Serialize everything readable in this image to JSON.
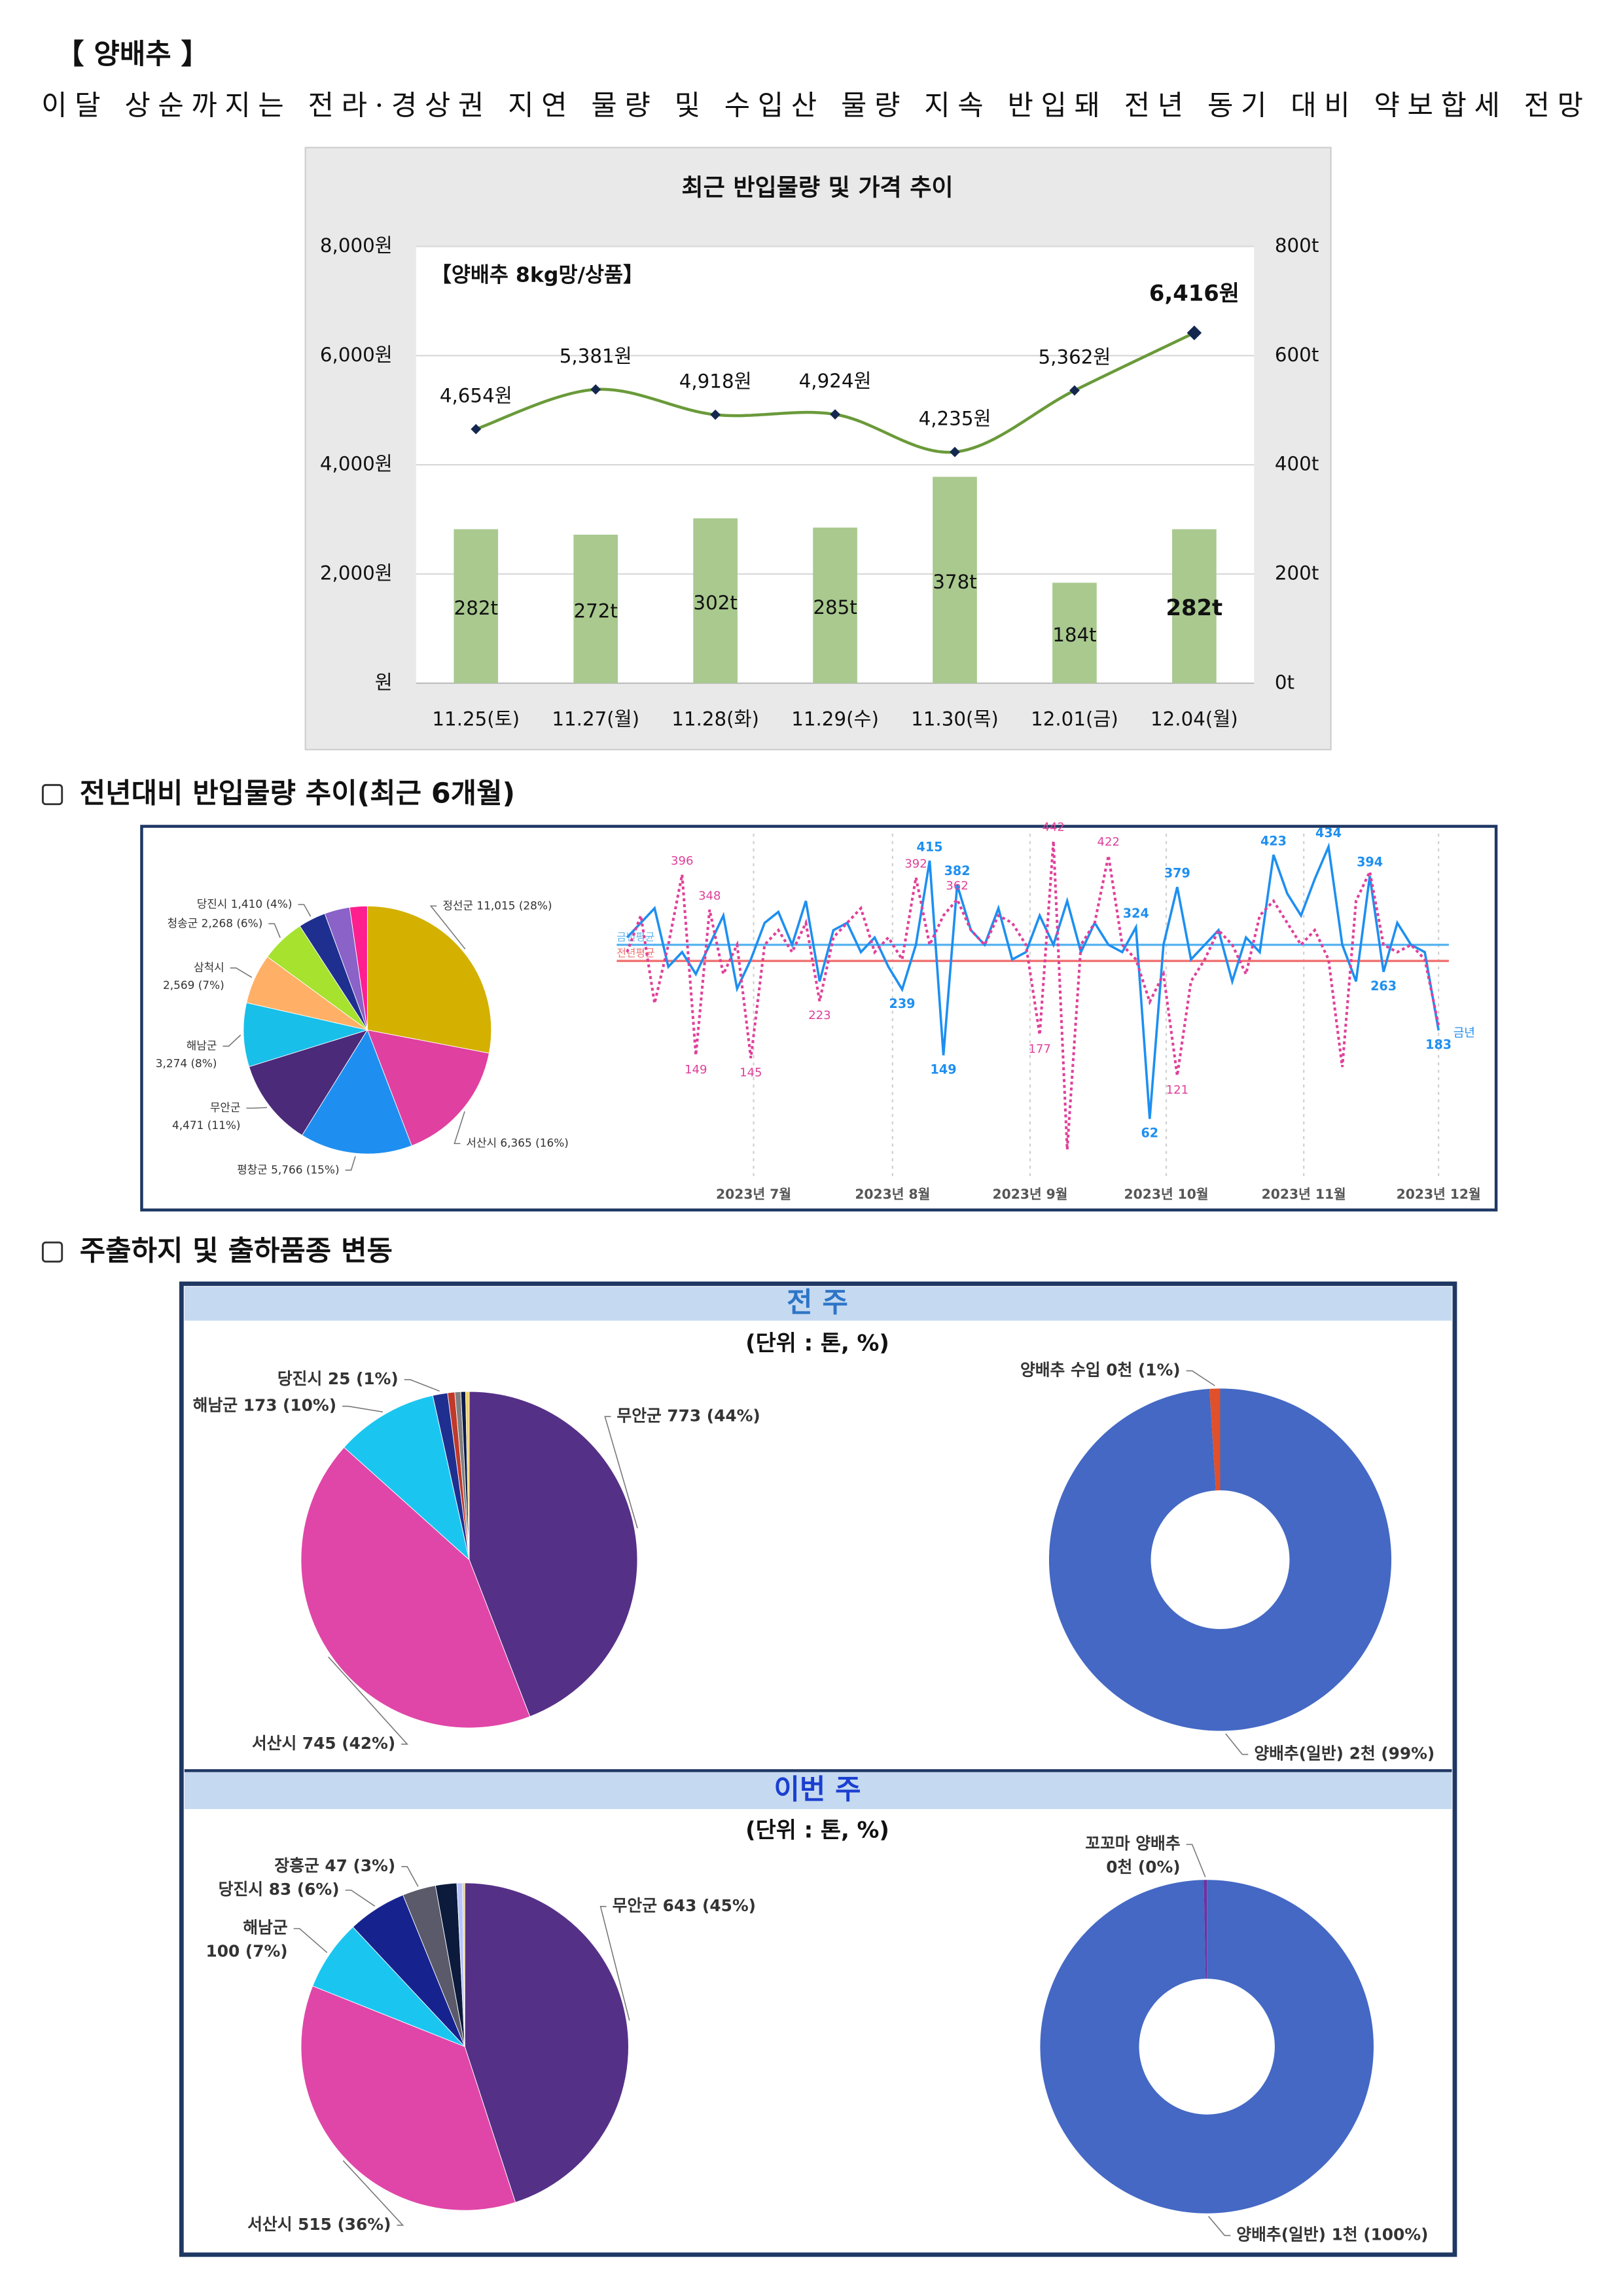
{
  "header": {
    "title": "【 양배추 】",
    "summary": "이달 상순까지는 전라·경상권 지연 물량 및 수입산 물량 지속 반입돼 전년 동기 대비 약보합세 전망"
  },
  "sections": [
    "전년대비 반입물량 추이(최근 6개월)",
    "주출하지 및 출하품종 변동"
  ],
  "weekly": {
    "prev": "전 주",
    "current": "이번 주",
    "unit": "(단위 : 톤, %)"
  },
  "chart_data": [
    {
      "type": "bar_line",
      "title": "최근 반입물량 및 가격 추이",
      "annotation": "【양배추 8kg망/상품】",
      "categories": [
        "11.25(토)",
        "11.27(월)",
        "11.28(화)",
        "11.29(수)",
        "11.30(목)",
        "12.01(금)",
        "12.04(월)"
      ],
      "series": [
        {
          "type": "bar",
          "axis": "y2",
          "color": "#a9c98f",
          "values": [
            282,
            272,
            302,
            285,
            378,
            184,
            282
          ],
          "value_labels": [
            "282t",
            "272t",
            "302t",
            "285t",
            "378t",
            "184t",
            "282t"
          ]
        },
        {
          "type": "line",
          "color": "#6a9a3a",
          "marker_color": "#14284f",
          "values": [
            4654,
            5381,
            4918,
            4924,
            4235,
            5362,
            6416
          ],
          "value_labels": [
            "4,654원",
            "5,381원",
            "4,918원",
            "4,924원",
            "4,235원",
            "5,362원",
            "6,416원"
          ]
        }
      ],
      "ylim": [
        0,
        8000
      ],
      "yticks": [
        {
          "value": 0,
          "label": "원"
        },
        {
          "value": 2000,
          "label": "2,000원"
        },
        {
          "value": 4000,
          "label": "4,000원"
        },
        {
          "value": 6000,
          "label": "6,000원"
        },
        {
          "value": 8000,
          "label": "8,000원"
        }
      ],
      "y2lim": [
        0,
        800
      ],
      "y2ticks": [
        {
          "value": 0,
          "label": "0t"
        },
        {
          "value": 200,
          "label": "200t"
        },
        {
          "value": 400,
          "label": "400t"
        },
        {
          "value": 600,
          "label": "600t"
        },
        {
          "value": 800,
          "label": "800t"
        }
      ],
      "grid": true,
      "highlight_last": true
    },
    {
      "type": "pie",
      "values": [
        11015,
        6365,
        5766,
        4471,
        3274,
        2569,
        2268,
        1410,
        1300,
        900
      ],
      "label_lines": [
        [
          "정선군 11,015 (28%)"
        ],
        [
          "서산시 6,365 (16%)"
        ],
        [
          "평창군 5,766 (15%)"
        ],
        [
          "무안군",
          "4,471 (11%)"
        ],
        [
          "해남군",
          "3,274 (8%)"
        ],
        [
          "삼척시",
          "2,569 (7%)"
        ],
        [
          "청송군 2,268 (6%)"
        ],
        [
          "당진시 1,410 (4%)"
        ],
        null,
        null
      ],
      "colors": [
        "#d4b000",
        "#e040a0",
        "#1e8ff0",
        "#4b2a7a",
        "#18bfe8",
        "#ffb066",
        "#a6e22e",
        "#1f2f90",
        "#8a62c8",
        "#ff1f8f"
      ]
    },
    {
      "type": "line",
      "xlim": [
        0,
        59
      ],
      "xticks": [
        {
          "value": 9.2,
          "label": "2023년 7월"
        },
        {
          "value": 19.3,
          "label": "2023년 8월"
        },
        {
          "value": 29.3,
          "label": "2023년 9월"
        },
        {
          "value": 39.2,
          "label": "2023년 10월"
        },
        {
          "value": 49.2,
          "label": "2023년 11월"
        },
        {
          "value": 59,
          "label": "2023년 12월"
        }
      ],
      "ylim": [
        0,
        460
      ],
      "series": [
        {
          "name": "금년",
          "color": "#1e8ff0",
          "dashed": false,
          "values": [
            310,
            330,
            350,
            270,
            290,
            260,
            300,
            340,
            240,
            280,
            330,
            345,
            300,
            360,
            250,
            320,
            330,
            290,
            310,
            270,
            239,
            300,
            415,
            149,
            382,
            320,
            300,
            350,
            280,
            290,
            340,
            300,
            360,
            290,
            330,
            300,
            290,
            324,
            62,
            300,
            379,
            280,
            300,
            320,
            250,
            310,
            290,
            423,
            370,
            340,
            390,
            434,
            300,
            250,
            394,
            263,
            330,
            300,
            290,
            183
          ],
          "value_labels": [
            null,
            null,
            null,
            null,
            null,
            null,
            null,
            null,
            null,
            null,
            null,
            null,
            null,
            null,
            null,
            null,
            null,
            null,
            null,
            null,
            "239",
            null,
            "415",
            "149",
            "382",
            null,
            null,
            null,
            null,
            null,
            null,
            null,
            null,
            null,
            null,
            null,
            null,
            "324",
            "62",
            null,
            "379",
            null,
            null,
            null,
            null,
            null,
            null,
            "423",
            null,
            null,
            null,
            "434",
            null,
            null,
            "394",
            "263",
            null,
            null,
            null,
            "183"
          ]
        },
        {
          "color": "#e0409a",
          "dashed": true,
          "values": [
            290,
            340,
            220,
            300,
            396,
            149,
            348,
            260,
            300,
            145,
            300,
            320,
            290,
            330,
            223,
            310,
            330,
            350,
            290,
            310,
            280,
            392,
            300,
            340,
            362,
            320,
            300,
            340,
            330,
            300,
            177,
            442,
            20,
            300,
            330,
            422,
            300,
            280,
            222,
            260,
            121,
            250,
            280,
            320,
            300,
            260,
            340,
            360,
            330,
            300,
            320,
            280,
            133,
            360,
            400,
            300,
            290,
            300,
            280,
            190
          ],
          "value_labels": [
            null,
            null,
            null,
            null,
            "396",
            "149",
            "348",
            null,
            null,
            "145",
            null,
            null,
            null,
            null,
            "223",
            null,
            null,
            null,
            null,
            null,
            null,
            "392",
            null,
            null,
            "362",
            null,
            null,
            null,
            null,
            null,
            "177",
            "442",
            null,
            null,
            null,
            "422",
            null,
            null,
            null,
            null,
            "121",
            null,
            null,
            null,
            null,
            null,
            null,
            null,
            null,
            null,
            null,
            null,
            null,
            null,
            null,
            null,
            null,
            null,
            null,
            null
          ]
        }
      ],
      "reference_lines": [
        {
          "name": "금년평균",
          "value": 300,
          "color": "#5ab4f0"
        },
        {
          "name": "전년평균",
          "value": 278,
          "color": "#f07070"
        }
      ]
    },
    {
      "type": "pie",
      "values": [
        773,
        745,
        173,
        25,
        12,
        10,
        8,
        6
      ],
      "label_lines": [
        [
          "무안군 773 (44%)"
        ],
        [
          "서산시 745 (42%)"
        ],
        [
          "해남군 173 (10%)"
        ],
        [
          "당진시 25 (1%)"
        ],
        null,
        null,
        null,
        null
      ],
      "colors": [
        "#553087",
        "#e046a8",
        "#1ac6f0",
        "#1f2f90",
        "#c0392b",
        "#808080",
        "#0d1b4a",
        "#f0d060"
      ]
    },
    {
      "type": "donut",
      "values": [
        99,
        1
      ],
      "label_lines": [
        [
          "양배추(일반) 2천 (99%)"
        ],
        [
          "양배추 수입 0천 (1%)"
        ]
      ],
      "colors": [
        "#4468c4",
        "#e0502a"
      ]
    },
    {
      "type": "pie",
      "values": [
        643,
        515,
        100,
        83,
        47,
        30,
        8,
        3
      ],
      "label_lines": [
        [
          "무안군 643 (45%)"
        ],
        [
          "서산시 515 (36%)"
        ],
        [
          "해남군",
          "100 (7%)"
        ],
        [
          "당진시 83 (6%)"
        ],
        [
          "장흥군 47 (3%)"
        ],
        null,
        null,
        null
      ],
      "colors": [
        "#553087",
        "#e046a8",
        "#1ac6f0",
        "#16238f",
        "#5a5a6a",
        "#0c1a3c",
        "#b8c4ff",
        "#f0d060"
      ]
    },
    {
      "type": "donut",
      "values": [
        99.7,
        0.3
      ],
      "label_lines": [
        [
          "양배추(일반) 1천 (100%)"
        ],
        [
          "꼬꼬마 양배추",
          "0천 (0%)"
        ]
      ],
      "colors": [
        "#4468c4",
        "#7030a0"
      ]
    }
  ]
}
